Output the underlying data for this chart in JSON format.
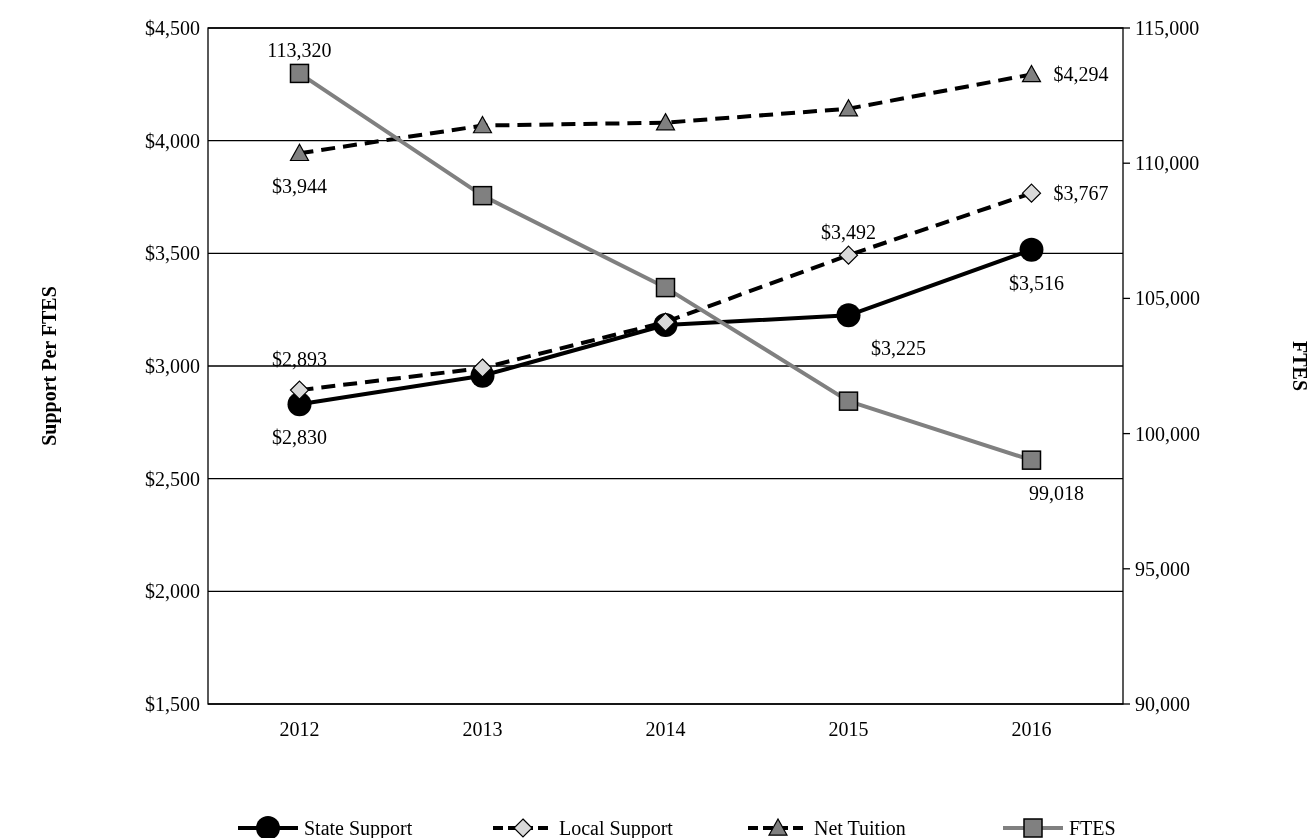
{
  "chart_data": {
    "type": "line",
    "categories": [
      "2012",
      "2013",
      "2014",
      "2015",
      "2016"
    ],
    "ylabel": "Support Per FTES",
    "y2label": "FTES",
    "ylim": [
      1500,
      4500
    ],
    "yticks": [
      {
        "value": 1500,
        "label": "$1,500"
      },
      {
        "value": 2000,
        "label": "$2,000"
      },
      {
        "value": 2500,
        "label": "$2,500"
      },
      {
        "value": 3000,
        "label": "$3,000"
      },
      {
        "value": 3500,
        "label": "$3,500"
      },
      {
        "value": 4000,
        "label": "$4,000"
      },
      {
        "value": 4500,
        "label": "$4,500"
      }
    ],
    "y2lim": [
      90000,
      115000
    ],
    "y2ticks": [
      {
        "value": 90000,
        "label": "90,000"
      },
      {
        "value": 95000,
        "label": "95,000"
      },
      {
        "value": 100000,
        "label": "100,000"
      },
      {
        "value": 105000,
        "label": "105,000"
      },
      {
        "value": 110000,
        "label": "110,000"
      },
      {
        "value": 115000,
        "label": "115,000"
      }
    ],
    "grid": "y",
    "legend": "bottom",
    "series": [
      {
        "name": "State Support",
        "color": "#000000",
        "marker": "circle",
        "line_style": "solid",
        "values": [
          2830,
          2957,
          3182,
          3225,
          3516
        ],
        "value_labels": [
          "$2,830",
          null,
          null,
          "$3,225",
          "$3,516"
        ]
      },
      {
        "name": "Local Support",
        "color": "#000000",
        "marker": "diamond",
        "line_style": "dashed",
        "values": [
          2893,
          2991,
          3195,
          3492,
          3767
        ],
        "value_labels": [
          "$2,893",
          null,
          null,
          "$3,492",
          "$3,767"
        ]
      },
      {
        "name": "Net Tuition",
        "color": "#000000",
        "marker": "triangle",
        "line_style": "dashed",
        "values": [
          3944,
          4067,
          4080,
          4142,
          4294
        ],
        "value_labels": [
          "$3,944",
          null,
          null,
          null,
          "$4,294"
        ]
      },
      {
        "name": "FTES",
        "color": "#808080",
        "marker": "square",
        "line_style": "solid",
        "axis": "y2",
        "values": [
          113320,
          108800,
          105400,
          101200,
          99018
        ],
        "value_labels": [
          "113,320",
          null,
          null,
          null,
          "99,018"
        ]
      }
    ]
  }
}
